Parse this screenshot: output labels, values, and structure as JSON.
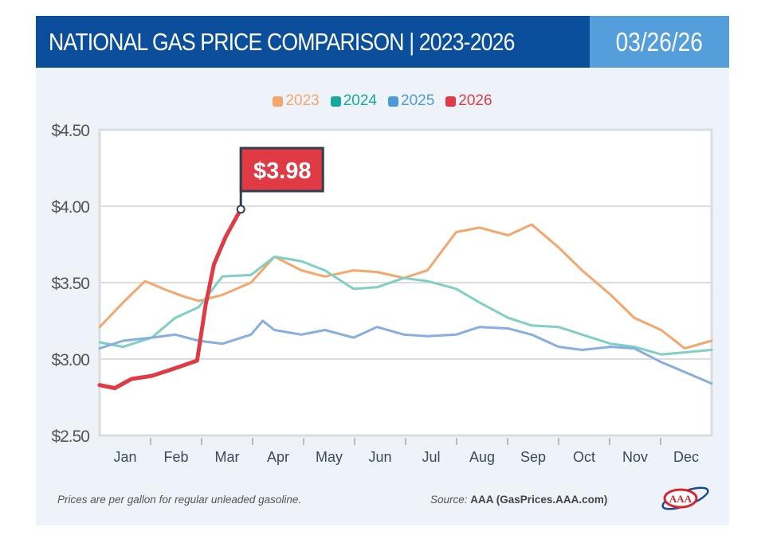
{
  "header": {
    "title": "NATIONAL GAS PRICE COMPARISON",
    "subtitle": "| 2023-2026",
    "date": "03/26/26"
  },
  "footer": {
    "note": "Prices are per gallon for regular unleaded gasoline.",
    "source_label": "Source:",
    "source": "AAA (GasPrices.AAA.com)",
    "logo_text": "AAA"
  },
  "chart_data": {
    "type": "line",
    "ylim": [
      2.5,
      4.5
    ],
    "yticks": [
      2.5,
      3.0,
      3.5,
      4.0,
      4.5
    ],
    "ytick_labels": [
      "$2.50",
      "$3.00",
      "$3.50",
      "$4.00",
      "$4.50"
    ],
    "xtick_labels": [
      "Jan",
      "Feb",
      "Mar",
      "Apr",
      "May",
      "Jun",
      "Jul",
      "Aug",
      "Sep",
      "Oct",
      "Nov",
      "Dec"
    ],
    "grid": "horizontal",
    "legend": "top-center",
    "annotation": {
      "text": "$3.98",
      "x": "03-26",
      "y": 3.98,
      "series": "2026"
    },
    "series": [
      {
        "name": "2023",
        "color": "#f5a66a",
        "points": [
          [
            "01-01",
            3.21
          ],
          [
            "01-15",
            3.37
          ],
          [
            "01-28",
            3.51
          ],
          [
            "02-10",
            3.45
          ],
          [
            "02-20",
            3.41
          ],
          [
            "03-01",
            3.38
          ],
          [
            "03-15",
            3.42
          ],
          [
            "04-01",
            3.5
          ],
          [
            "04-15",
            3.67
          ],
          [
            "05-01",
            3.58
          ],
          [
            "05-15",
            3.54
          ],
          [
            "06-01",
            3.58
          ],
          [
            "06-15",
            3.57
          ],
          [
            "07-01",
            3.53
          ],
          [
            "07-15",
            3.58
          ],
          [
            "08-01",
            3.83
          ],
          [
            "08-15",
            3.86
          ],
          [
            "09-01",
            3.81
          ],
          [
            "09-15",
            3.88
          ],
          [
            "10-01",
            3.73
          ],
          [
            "10-15",
            3.58
          ],
          [
            "11-01",
            3.42
          ],
          [
            "11-15",
            3.27
          ],
          [
            "12-01",
            3.19
          ],
          [
            "12-15",
            3.07
          ],
          [
            "12-31",
            3.12
          ]
        ]
      },
      {
        "name": "2024",
        "color": "#7fcfc4",
        "points": [
          [
            "01-01",
            3.11
          ],
          [
            "01-15",
            3.08
          ],
          [
            "02-01",
            3.14
          ],
          [
            "02-15",
            3.27
          ],
          [
            "03-01",
            3.34
          ],
          [
            "03-15",
            3.54
          ],
          [
            "04-01",
            3.55
          ],
          [
            "04-15",
            3.67
          ],
          [
            "05-01",
            3.64
          ],
          [
            "05-15",
            3.58
          ],
          [
            "06-01",
            3.46
          ],
          [
            "06-15",
            3.47
          ],
          [
            "07-01",
            3.53
          ],
          [
            "07-15",
            3.51
          ],
          [
            "08-01",
            3.46
          ],
          [
            "08-15",
            3.37
          ],
          [
            "09-01",
            3.27
          ],
          [
            "09-15",
            3.22
          ],
          [
            "10-01",
            3.21
          ],
          [
            "10-15",
            3.16
          ],
          [
            "11-01",
            3.1
          ],
          [
            "11-15",
            3.08
          ],
          [
            "12-01",
            3.03
          ],
          [
            "12-31",
            3.06
          ]
        ]
      },
      {
        "name": "2025",
        "color": "#86aee0",
        "points": [
          [
            "01-01",
            3.07
          ],
          [
            "01-15",
            3.12
          ],
          [
            "02-01",
            3.14
          ],
          [
            "02-15",
            3.16
          ],
          [
            "03-01",
            3.12
          ],
          [
            "03-15",
            3.1
          ],
          [
            "04-01",
            3.16
          ],
          [
            "04-08",
            3.25
          ],
          [
            "04-15",
            3.19
          ],
          [
            "05-01",
            3.16
          ],
          [
            "05-15",
            3.19
          ],
          [
            "06-01",
            3.14
          ],
          [
            "06-15",
            3.21
          ],
          [
            "07-01",
            3.16
          ],
          [
            "07-15",
            3.15
          ],
          [
            "08-01",
            3.16
          ],
          [
            "08-15",
            3.21
          ],
          [
            "09-01",
            3.2
          ],
          [
            "09-15",
            3.16
          ],
          [
            "10-01",
            3.08
          ],
          [
            "10-15",
            3.06
          ],
          [
            "11-01",
            3.08
          ],
          [
            "11-15",
            3.07
          ],
          [
            "12-01",
            2.98
          ],
          [
            "12-31",
            2.84
          ]
        ]
      },
      {
        "name": "2026",
        "color": "#e03a45",
        "points": [
          [
            "01-01",
            2.83
          ],
          [
            "01-10",
            2.81
          ],
          [
            "01-20",
            2.87
          ],
          [
            "02-01",
            2.89
          ],
          [
            "02-15",
            2.94
          ],
          [
            "02-28",
            2.99
          ],
          [
            "03-05",
            3.35
          ],
          [
            "03-10",
            3.62
          ],
          [
            "03-17",
            3.8
          ],
          [
            "03-26",
            3.98
          ]
        ]
      }
    ]
  }
}
